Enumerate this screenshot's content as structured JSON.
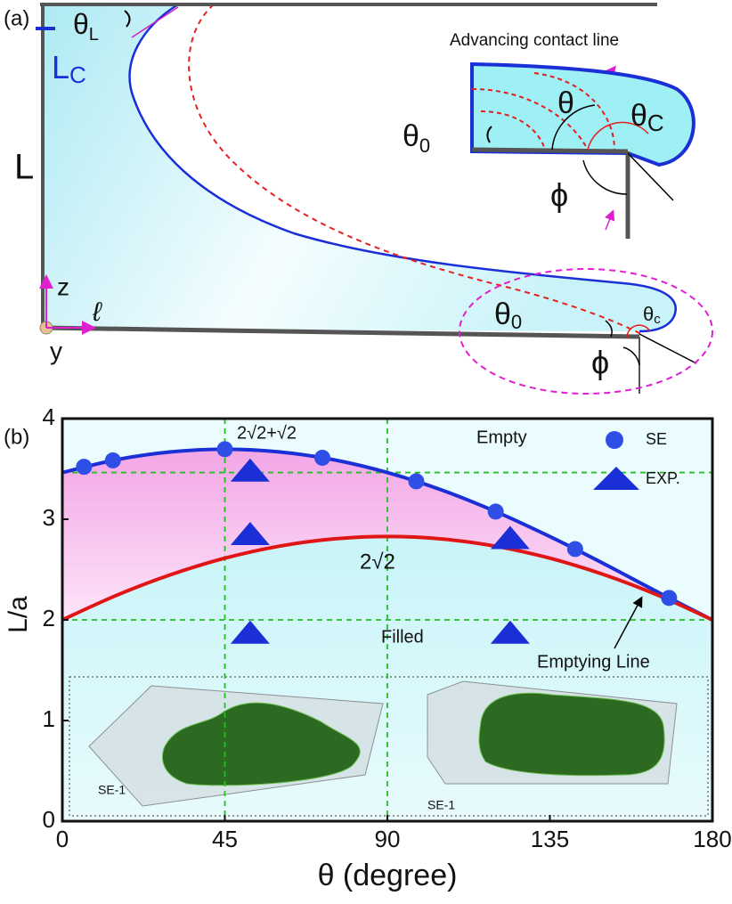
{
  "diagram": {
    "panel_label": "(a)",
    "theta_L": [
      "θ",
      "L"
    ],
    "L_C": [
      "L",
      "C"
    ],
    "L": "L",
    "z": "z",
    "y": "y",
    "ell": "ℓ",
    "advancing": "Advancing contact line",
    "main": {
      "theta_0": [
        "θ",
        "0"
      ],
      "theta_c": [
        "θ",
        "c"
      ],
      "phi": "ϕ"
    },
    "inset": {
      "theta_0": [
        "θ",
        "0"
      ],
      "theta": "θ",
      "theta_C": [
        "θ",
        "C"
      ],
      "phi": "ϕ"
    }
  },
  "chart_data": {
    "type": "line",
    "panel_label": "(b)",
    "x_label": "θ (degree)",
    "y_label": "L/a",
    "x": [
      0,
      15,
      30,
      45,
      60,
      75,
      90,
      105,
      120,
      135,
      150,
      165,
      180
    ],
    "series": [
      {
        "color": "#1a2fd6",
        "values": [
          3.464,
          3.592,
          3.669,
          3.696,
          3.669,
          3.592,
          3.464,
          3.291,
          3.076,
          2.828,
          2.557,
          2.274,
          2.0
        ]
      },
      {
        "color": "#e01515",
        "values": [
          2.0,
          2.244,
          2.449,
          2.613,
          2.732,
          2.804,
          2.828,
          2.804,
          2.732,
          2.613,
          2.449,
          2.244,
          2.0
        ]
      },
      {
        "name": "SE",
        "type": "scatter",
        "marker": "circle",
        "color": "#2f4ee6",
        "x": [
          6,
          14,
          45,
          72,
          98,
          120,
          142,
          168
        ],
        "values": [
          3.521,
          3.585,
          3.696,
          3.611,
          3.377,
          3.076,
          2.704,
          2.218
        ]
      },
      {
        "name": "EXP.",
        "type": "scatter",
        "marker": "triangle",
        "color": "#1a2fd6",
        "x": [
          52,
          52,
          52,
          124,
          124
        ],
        "values": [
          3.48,
          2.85,
          1.87,
          2.81,
          1.87
        ]
      }
    ],
    "xlim": [
      0,
      180
    ],
    "ylim": [
      0,
      4
    ],
    "xticks": [
      0,
      45,
      90,
      135,
      180
    ],
    "yticks": [
      0,
      1,
      2,
      3,
      4
    ],
    "grid_x": [
      45,
      90
    ],
    "grid_y": [
      2,
      3.464
    ],
    "grid_color": "#22c022",
    "annotations": [
      "Empty",
      "Filled",
      "Emptying Line",
      "2√2+√2",
      "2√2"
    ],
    "inset_labels": [
      "SE-1",
      "SE-1"
    ]
  }
}
